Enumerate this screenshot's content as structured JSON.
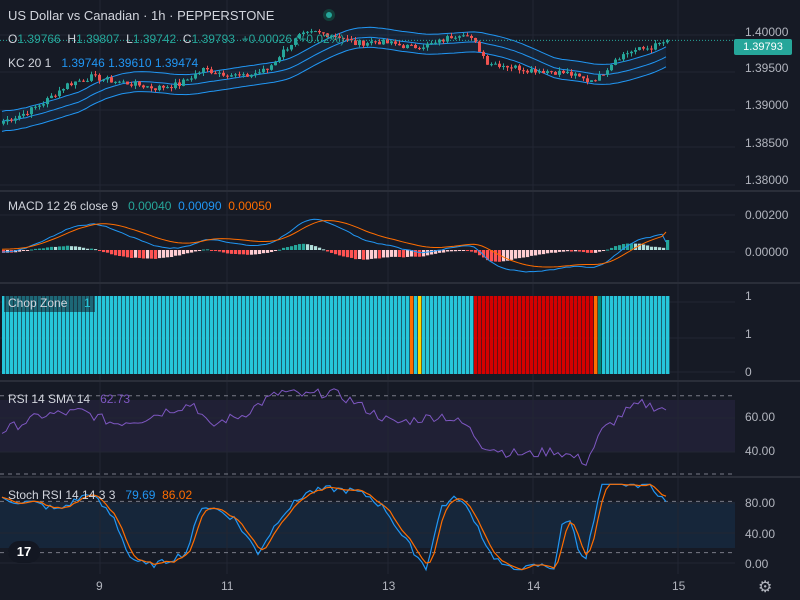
{
  "header": {
    "title": "US Dollar vs Canadian · 1h · PEPPERSTONE",
    "ohlc": {
      "o_label": "O",
      "o": "1.39766",
      "h_label": "H",
      "h": "1.39807",
      "l_label": "L",
      "l": "1.39742",
      "c_label": "C",
      "c": "1.39793",
      "change": "+0.00026 (+0.02%)"
    }
  },
  "price_pane": {
    "indicator_label": "KC 20 1",
    "kc_values": [
      "1.39746",
      "1.39610",
      "1.39474"
    ],
    "axis_ticks": [
      "1.40000",
      "1.39500",
      "1.39000",
      "1.38500",
      "1.38000"
    ],
    "last_price": "1.39793"
  },
  "macd_pane": {
    "indicator_label": "MACD 12 26 close 9",
    "values": [
      "0.00040",
      "0.00090",
      "0.00050"
    ],
    "axis_ticks": [
      "0.00200",
      "0.00000"
    ]
  },
  "chop_pane": {
    "indicator_label": "Chop Zone",
    "value": "1",
    "axis_ticks": [
      "1",
      "1",
      "0"
    ]
  },
  "rsi_pane": {
    "indicator_label": "RSI 14 SMA 14",
    "value": "62.73",
    "axis_ticks": [
      "60.00",
      "40.00"
    ]
  },
  "stoch_pane": {
    "indicator_label": "Stoch RSI 14 14 3 3",
    "values": [
      "79.69",
      "86.02"
    ],
    "axis_ticks": [
      "80.00",
      "40.00",
      "0.00"
    ]
  },
  "time_axis": {
    "ticks": [
      "9",
      "11",
      "13",
      "14",
      "15"
    ]
  },
  "colors": {
    "background": "#161a25",
    "up": "#26a69a",
    "down": "#ef5350",
    "kc": "#2196f3",
    "macd_line": "#2196f3",
    "signal_line": "#ff6d00",
    "rsi": "#7e57c2",
    "stoch_k": "#2196f3",
    "stoch_d": "#ff6d00",
    "chop_cyan": "#26c6da",
    "chop_red": "#d50000",
    "chop_orange": "#ff6d00",
    "chop_yellow": "#ffd600",
    "chop_teal": "#00897b"
  },
  "icons": {
    "logo": "tradingview-logo-icon",
    "settings": "gear-icon",
    "status": "live-dot-icon"
  },
  "chart_data": {
    "type": "candlestick",
    "price": {
      "ylim": [
        1.378,
        1.4015
      ],
      "anchors": [
        [
          0,
          1.387
        ],
        [
          5,
          1.388
        ],
        [
          10,
          1.3895
        ],
        [
          16,
          1.392
        ],
        [
          22,
          1.393
        ],
        [
          28,
          1.3924
        ],
        [
          33,
          1.392
        ],
        [
          38,
          1.3915
        ],
        [
          44,
          1.392
        ],
        [
          50,
          1.394
        ],
        [
          55,
          1.3935
        ],
        [
          60,
          1.393
        ],
        [
          66,
          1.394
        ],
        [
          70,
          1.3965
        ],
        [
          74,
          1.3985
        ],
        [
          78,
          1.399
        ],
        [
          84,
          1.3985
        ],
        [
          88,
          1.3975
        ],
        [
          93,
          1.3978
        ],
        [
          97,
          1.3975
        ],
        [
          102,
          1.397
        ],
        [
          108,
          1.3975
        ],
        [
          112,
          1.3985
        ],
        [
          115,
          1.399
        ],
        [
          118,
          1.3975
        ],
        [
          121,
          1.395
        ],
        [
          126,
          1.3945
        ],
        [
          131,
          1.394
        ],
        [
          136,
          1.3938
        ],
        [
          141,
          1.3935
        ],
        [
          146,
          1.3925
        ],
        [
          149,
          1.393
        ],
        [
          153,
          1.3955
        ],
        [
          157,
          1.3965
        ],
        [
          162,
          1.397
        ],
        [
          166,
          1.3979
        ]
      ],
      "last": 1.39793
    },
    "macd": {
      "ylim": [
        -0.0015,
        0.0028
      ],
      "last": {
        "macd": 0.0004,
        "signal": 0.0009,
        "histogram": 0.0005
      }
    },
    "chop_zone": {
      "ylim": [
        0,
        1
      ],
      "segments": [
        {
          "from": 0,
          "to": 102,
          "color": "cyan"
        },
        {
          "from": 102,
          "to": 103,
          "color": "orange"
        },
        {
          "from": 103,
          "to": 104,
          "color": "cyan"
        },
        {
          "from": 104,
          "to": 105,
          "color": "yellow"
        },
        {
          "from": 105,
          "to": 118,
          "color": "cyan"
        },
        {
          "from": 118,
          "to": 148,
          "color": "red"
        },
        {
          "from": 148,
          "to": 149,
          "color": "orange"
        },
        {
          "from": 149,
          "to": 150,
          "color": "teal"
        },
        {
          "from": 150,
          "to": 167,
          "color": "cyan"
        }
      ]
    },
    "rsi": {
      "ylim": [
        30,
        75
      ],
      "levels": [
        70,
        30
      ],
      "anchors": [
        [
          0,
          52
        ],
        [
          10,
          60
        ],
        [
          20,
          62
        ],
        [
          28,
          56
        ],
        [
          35,
          58
        ],
        [
          42,
          63
        ],
        [
          48,
          66
        ],
        [
          52,
          54
        ],
        [
          56,
          58
        ],
        [
          60,
          60
        ],
        [
          66,
          68
        ],
        [
          70,
          72
        ],
        [
          76,
          70
        ],
        [
          82,
          72
        ],
        [
          88,
          67
        ],
        [
          92,
          62
        ],
        [
          98,
          56
        ],
        [
          104,
          58
        ],
        [
          110,
          60
        ],
        [
          116,
          55
        ],
        [
          120,
          45
        ],
        [
          126,
          41
        ],
        [
          132,
          40
        ],
        [
          138,
          42
        ],
        [
          144,
          38
        ],
        [
          146,
          36
        ],
        [
          150,
          52
        ],
        [
          156,
          62
        ],
        [
          160,
          66
        ],
        [
          164,
          64
        ],
        [
          166,
          63
        ]
      ],
      "last": 62.73
    },
    "stoch_rsi": {
      "ylim": [
        -5,
        105
      ],
      "levels": [
        80,
        20
      ],
      "anchors": [
        [
          0,
          82
        ],
        [
          8,
          78
        ],
        [
          14,
          70
        ],
        [
          22,
          90
        ],
        [
          28,
          60
        ],
        [
          32,
          15
        ],
        [
          36,
          5
        ],
        [
          40,
          8
        ],
        [
          46,
          20
        ],
        [
          50,
          75
        ],
        [
          54,
          70
        ],
        [
          58,
          60
        ],
        [
          64,
          20
        ],
        [
          70,
          65
        ],
        [
          76,
          90
        ],
        [
          82,
          95
        ],
        [
          88,
          92
        ],
        [
          92,
          85
        ],
        [
          96,
          70
        ],
        [
          100,
          40
        ],
        [
          104,
          15
        ],
        [
          106,
          2
        ],
        [
          110,
          75
        ],
        [
          114,
          85
        ],
        [
          118,
          60
        ],
        [
          122,
          20
        ],
        [
          126,
          2
        ],
        [
          130,
          0
        ],
        [
          134,
          5
        ],
        [
          138,
          3
        ],
        [
          140,
          50
        ],
        [
          142,
          60
        ],
        [
          144,
          25
        ],
        [
          146,
          15
        ],
        [
          150,
          100
        ],
        [
          156,
          100
        ],
        [
          162,
          100
        ],
        [
          166,
          80
        ]
      ],
      "last": {
        "k": 79.69,
        "d": 86.02
      }
    }
  }
}
